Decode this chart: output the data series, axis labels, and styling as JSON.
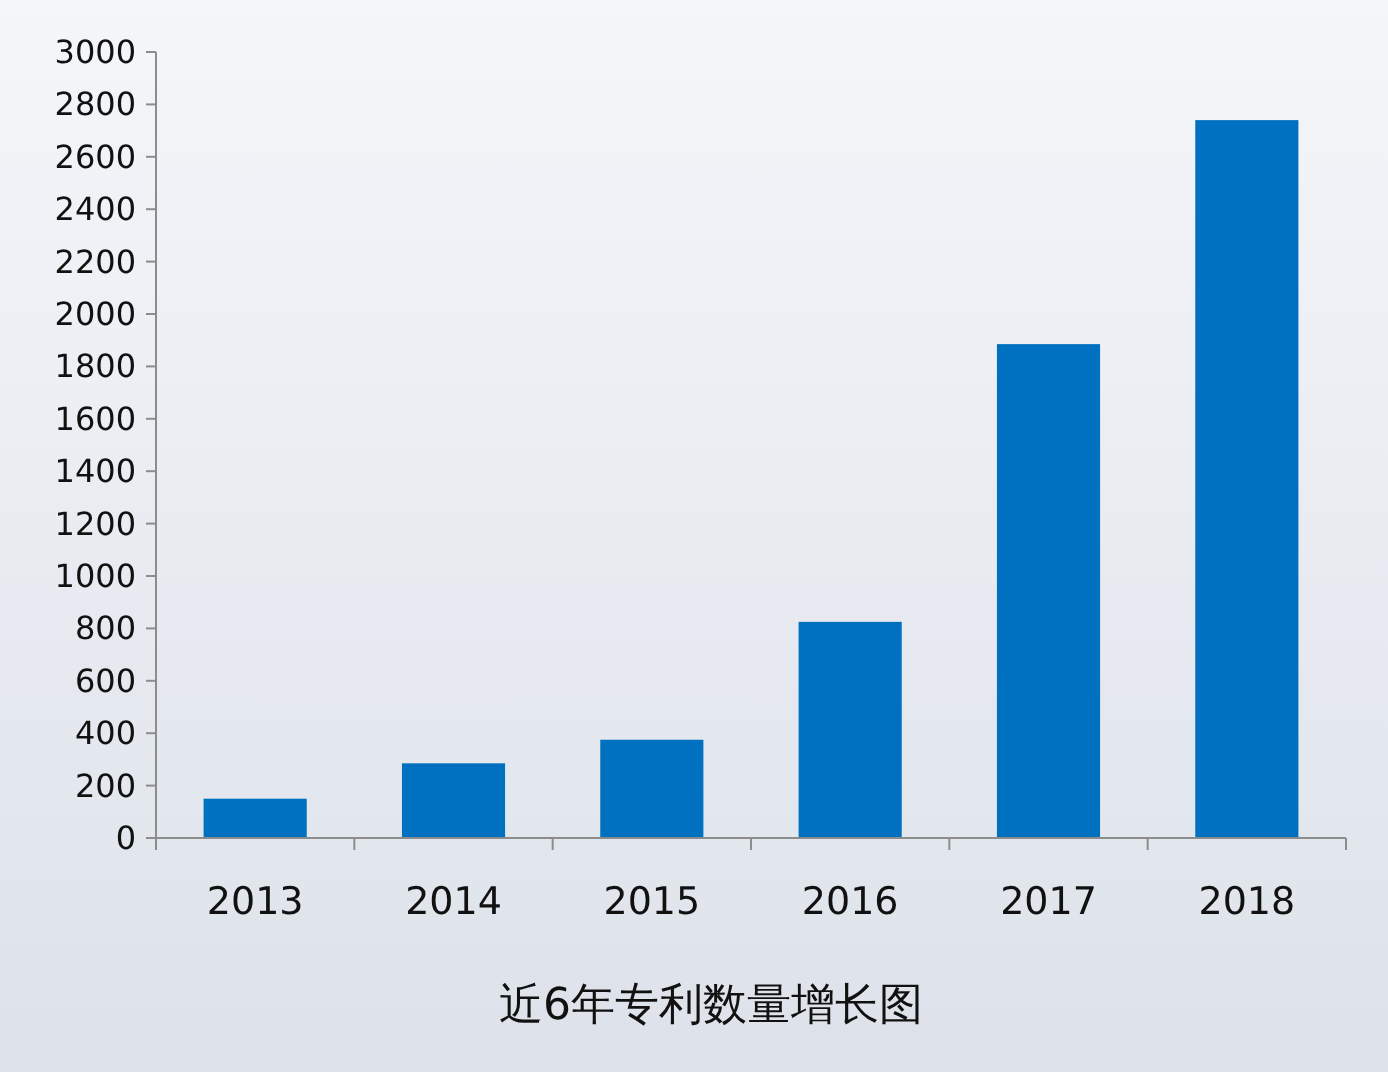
{
  "chart_data": {
    "type": "bar",
    "title": "近6年专利数量增长图",
    "categories": [
      "2013",
      "2014",
      "2015",
      "2016",
      "2017",
      "2018"
    ],
    "values": [
      150,
      285,
      375,
      825,
      1885,
      2740
    ],
    "color": "#0070c0",
    "ylim": [
      0,
      3000
    ],
    "yticks": [
      0,
      200,
      400,
      600,
      800,
      1000,
      1200,
      1400,
      1600,
      1800,
      2000,
      2200,
      2400,
      2600,
      2800,
      3000
    ],
    "grid": false
  }
}
